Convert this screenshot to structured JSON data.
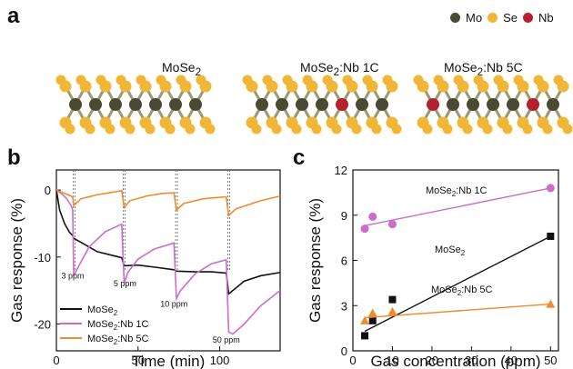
{
  "panel_a": {
    "letter": "a",
    "legend": [
      {
        "label": "Mo",
        "color": "#4a4a32"
      },
      {
        "label": "Se",
        "color": "#f2b636"
      },
      {
        "label": "Nb",
        "color": "#b3202e"
      }
    ],
    "structures": [
      {
        "label_main": "MoSe",
        "label_sub": "2",
        "label_rest": "",
        "nb_positions": []
      },
      {
        "label_main": "MoSe",
        "label_sub": "2",
        "label_rest": ":Nb 1C",
        "nb_positions": [
          4
        ]
      },
      {
        "label_main": "MoSe",
        "label_sub": "2",
        "label_rest": ":Nb 5C",
        "nb_positions": [
          0,
          5
        ]
      }
    ]
  },
  "panel_b": {
    "letter": "b",
    "xlabel": "Time (min)",
    "ylabel": "Gas response (%)",
    "xticks": [
      "0",
      "50",
      "100"
    ],
    "yticks": [
      "0",
      "-10",
      "-20"
    ],
    "annotations": [
      "3 ppm",
      "5 ppm",
      "10 ppm",
      "50 ppm"
    ],
    "legend": [
      "MoSe",
      "MoSe",
      "MoSe"
    ],
    "legend_sub": [
      "2",
      "2",
      "2"
    ],
    "legend_rest": [
      "",
      ":Nb 1C",
      ":Nb 5C"
    ]
  },
  "panel_c": {
    "letter": "c",
    "xlabel": "Gas concentration (ppm)",
    "ylabel": "Gas response (%)",
    "xticks": [
      "0",
      "10",
      "20",
      "30",
      "40",
      "50"
    ],
    "yticks": [
      "0",
      "3",
      "6",
      "9",
      "12"
    ],
    "labels": [
      {
        "main": "MoSe",
        "sub": "2",
        "rest": ":Nb 1C"
      },
      {
        "main": "MoSe",
        "sub": "2",
        "rest": ""
      },
      {
        "main": "MoSe",
        "sub": "2",
        "rest": ":Nb 5C"
      }
    ]
  },
  "chart_data": [
    {
      "type": "line",
      "xlabel": "Time (min)",
      "ylabel": "Gas response (%)",
      "xlim": [
        0,
        137
      ],
      "ylim": [
        -24,
        3
      ],
      "series": [
        {
          "name": "MoSe2",
          "color": "#111111",
          "x": [
            0,
            2,
            5,
            8,
            10,
            10.6,
            15,
            25,
            40,
            41.5,
            50,
            60,
            72,
            73.5,
            85,
            95,
            104,
            105.5,
            115,
            125,
            137
          ],
          "y": [
            0,
            -3,
            -5,
            -6.3,
            -6.8,
            -7.2,
            -7.8,
            -9.2,
            -10.1,
            -11.3,
            -11.2,
            -11.5,
            -11.9,
            -12.1,
            -12.2,
            -12.2,
            -12.4,
            -15.5,
            -13.6,
            -12.8,
            -12.3
          ]
        },
        {
          "name": "MoSe2:Nb 1C",
          "color": "#cc6ccc",
          "x": [
            0,
            3,
            6,
            9,
            10,
            10.6,
            14,
            20,
            30,
            40,
            41.5,
            44,
            50,
            60,
            72,
            73.5,
            76,
            85,
            95,
            104,
            105.5,
            108,
            115,
            125,
            137
          ],
          "y": [
            0,
            -0.5,
            -1.2,
            -2.3,
            -3,
            -12.8,
            -11.2,
            -8.5,
            -6.2,
            -5.1,
            -13.8,
            -12.2,
            -10.3,
            -8.8,
            -7.9,
            -16.2,
            -15,
            -12.5,
            -11,
            -10.4,
            -21.2,
            -21.5,
            -20,
            -17.3,
            -15
          ]
        },
        {
          "name": "MoSe2:Nb 5C",
          "color": "#f08a2a",
          "x": [
            0,
            3,
            6,
            9,
            10,
            10.6,
            15,
            25,
            35,
            40,
            41.5,
            45,
            55,
            65,
            72,
            73.5,
            78,
            90,
            104,
            105.5,
            110,
            125,
            137
          ],
          "y": [
            0,
            -0.3,
            -0.6,
            -0.9,
            -1.1,
            -2.3,
            -1.3,
            -0.7,
            -0.3,
            -0.1,
            -2.6,
            -1.6,
            -0.9,
            -0.5,
            -0.4,
            -3.0,
            -2.0,
            -1.3,
            -1.0,
            -3.8,
            -2.8,
            -1.6,
            -0.9
          ]
        }
      ],
      "dashed_x": [
        10.3,
        41,
        73,
        105
      ],
      "annotations": [
        {
          "text": "3 ppm",
          "x": 10,
          "y": -13.2
        },
        {
          "text": "5 ppm",
          "x": 42,
          "y": -14.4
        },
        {
          "text": "10 ppm",
          "x": 72,
          "y": -17.4
        },
        {
          "text": "50 ppm",
          "x": 104,
          "y": -22.8
        }
      ]
    },
    {
      "type": "scatter",
      "xlabel": "Gas concentration (ppm)",
      "ylabel": "Gas response (%)",
      "xlim": [
        0,
        52
      ],
      "ylim": [
        0,
        12
      ],
      "series": [
        {
          "name": "MoSe2",
          "marker": "square",
          "color": "#111111",
          "line_color": "#111111",
          "x": [
            3,
            5,
            10,
            50
          ],
          "y": [
            1.0,
            2.0,
            3.4,
            7.6
          ],
          "fit": [
            [
              3,
              1.3
            ],
            [
              50,
              7.6
            ]
          ]
        },
        {
          "name": "MoSe2:Nb 1C",
          "marker": "circle",
          "color": "#cc6ccc",
          "line_color": "#cc6ccc",
          "x": [
            3,
            5,
            10,
            50
          ],
          "y": [
            8.1,
            8.9,
            8.4,
            10.8
          ],
          "fit": [
            [
              3,
              8.3
            ],
            [
              50,
              10.8
            ]
          ]
        },
        {
          "name": "MoSe2:Nb 5C",
          "marker": "triangle",
          "color": "#f08a2a",
          "line_color": "#f08a2a",
          "x": [
            3,
            5,
            10,
            50
          ],
          "y": [
            2.0,
            2.5,
            2.6,
            3.1
          ],
          "fit": [
            [
              3,
              2.2
            ],
            [
              50,
              3.1
            ]
          ]
        }
      ]
    }
  ]
}
